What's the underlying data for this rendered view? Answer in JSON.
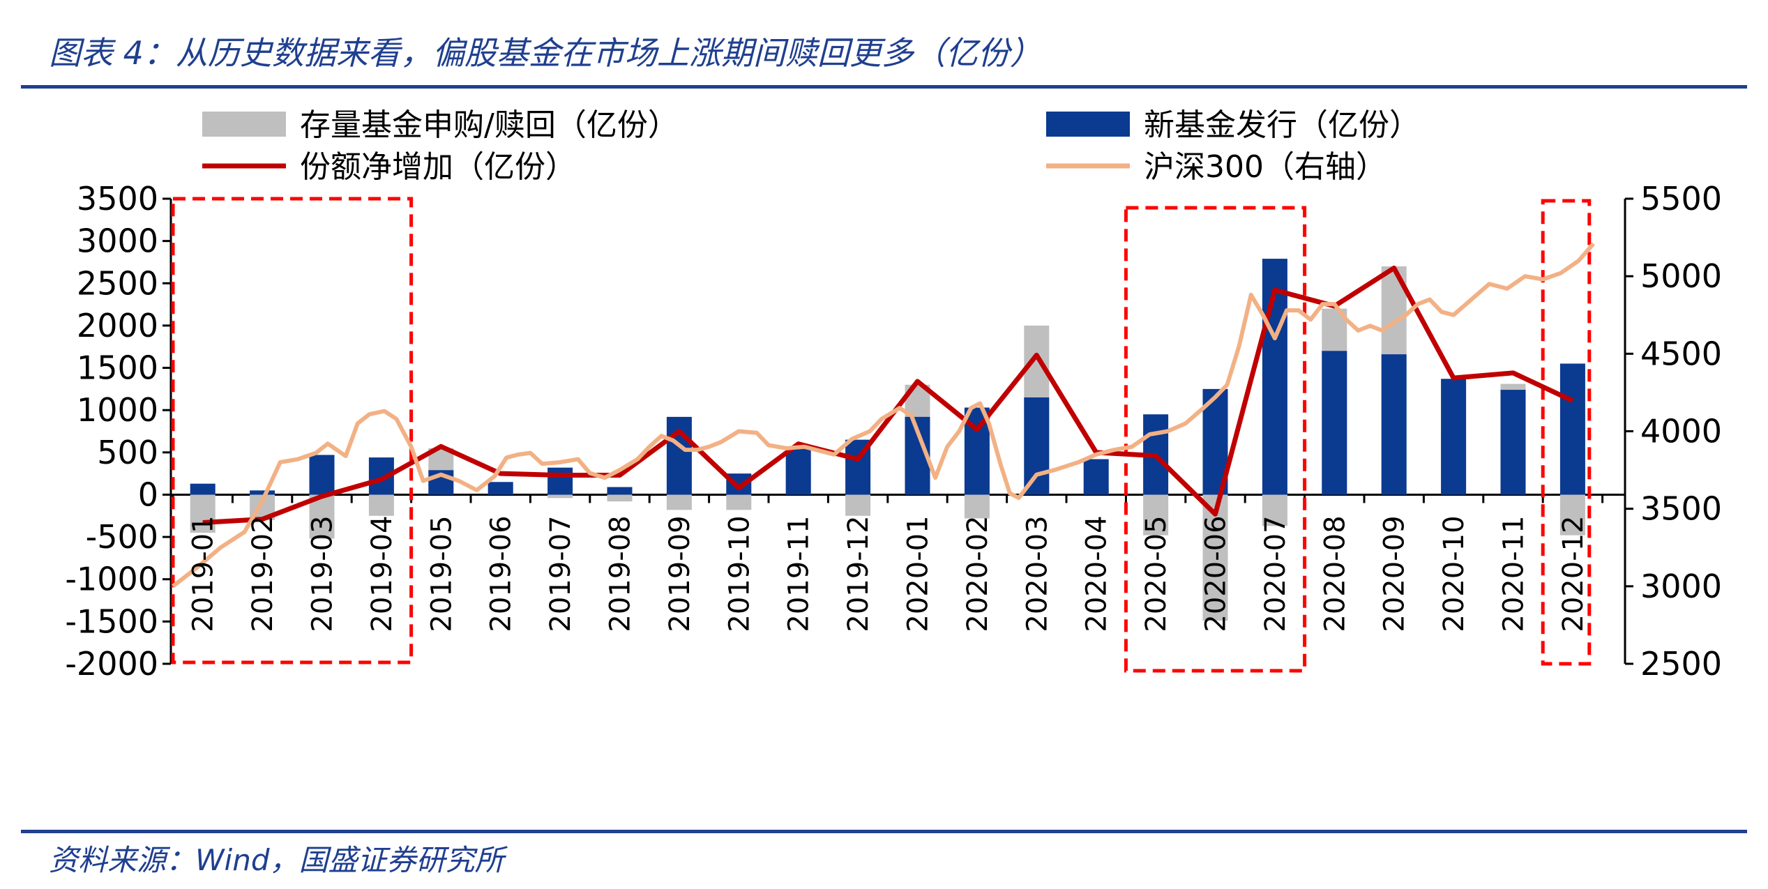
{
  "figure": {
    "title": "图表 4：从历史数据来看，偏股基金在市场上涨期间赎回更多（亿份）",
    "source": "资料来源：Wind，国盛证券研究所"
  },
  "chart_data": {
    "type": "bar",
    "categories": [
      "2019-01",
      "2019-02",
      "2019-03",
      "2019-04",
      "2019-05",
      "2019-06",
      "2019-07",
      "2019-08",
      "2019-09",
      "2019-10",
      "2019-11",
      "2019-12",
      "2020-01",
      "2020-02",
      "2020-03",
      "2020-04",
      "2020-05",
      "2020-06",
      "2020-07",
      "2020-08",
      "2020-09",
      "2020-10",
      "2020-11",
      "2020-12"
    ],
    "ylim": [
      -2000,
      3500
    ],
    "yticks": [
      3500,
      3000,
      2500,
      2000,
      1500,
      1000,
      500,
      0,
      -500,
      -1000,
      -1500,
      -2000
    ],
    "y2lim": [
      2500,
      5500
    ],
    "y2ticks": [
      5500,
      5000,
      4500,
      4000,
      3500,
      3000,
      2500
    ],
    "series": [
      {
        "name": "存量基金申购/赎回（亿份）",
        "kind": "bar",
        "color": "#bfbfbf",
        "values": [
          -450,
          -300,
          -520,
          -250,
          550,
          130,
          -40,
          -80,
          -180,
          -180,
          400,
          -250,
          1300,
          -280,
          2000,
          70,
          -480,
          -1490,
          -370,
          2200,
          2700,
          750,
          1310,
          -480
        ]
      },
      {
        "name": "新基金发行（亿份）",
        "kind": "bar",
        "color": "#0b3a91",
        "values": [
          130,
          50,
          470,
          440,
          290,
          150,
          320,
          90,
          920,
          250,
          570,
          650,
          920,
          1030,
          1150,
          420,
          950,
          1250,
          2790,
          1700,
          1660,
          1370,
          1240,
          1550
        ]
      },
      {
        "name": "份额净增加（亿份）",
        "kind": "line",
        "axis": "left",
        "color": "#c00000",
        "values": [
          -330,
          -290,
          -20,
          180,
          570,
          250,
          230,
          230,
          750,
          80,
          600,
          420,
          1340,
          770,
          1650,
          500,
          460,
          -230,
          2420,
          2230,
          2680,
          1380,
          1440,
          1110
        ]
      },
      {
        "name": "沪深300（右轴）",
        "kind": "line",
        "axis": "right",
        "color": "#f2b185",
        "points": [
          [
            0,
            3000
          ],
          [
            0.4,
            3120
          ],
          [
            0.8,
            3250
          ],
          [
            1.2,
            3350
          ],
          [
            1.5,
            3550
          ],
          [
            1.8,
            3800
          ],
          [
            2.1,
            3820
          ],
          [
            2.4,
            3860
          ],
          [
            2.6,
            3920
          ],
          [
            2.9,
            3840
          ],
          [
            3.1,
            4050
          ],
          [
            3.3,
            4110
          ],
          [
            3.55,
            4130
          ],
          [
            3.75,
            4080
          ],
          [
            4.0,
            3900
          ],
          [
            4.2,
            3680
          ],
          [
            4.5,
            3720
          ],
          [
            4.8,
            3680
          ],
          [
            5.1,
            3620
          ],
          [
            5.4,
            3710
          ],
          [
            5.6,
            3830
          ],
          [
            5.8,
            3850
          ],
          [
            6.0,
            3860
          ],
          [
            6.2,
            3790
          ],
          [
            6.5,
            3800
          ],
          [
            6.8,
            3820
          ],
          [
            7.0,
            3730
          ],
          [
            7.25,
            3700
          ],
          [
            7.5,
            3750
          ],
          [
            7.8,
            3820
          ],
          [
            8.0,
            3900
          ],
          [
            8.2,
            3970
          ],
          [
            8.4,
            3940
          ],
          [
            8.6,
            3880
          ],
          [
            8.8,
            3880
          ],
          [
            9.0,
            3900
          ],
          [
            9.2,
            3930
          ],
          [
            9.5,
            4000
          ],
          [
            9.8,
            3990
          ],
          [
            10.0,
            3910
          ],
          [
            10.3,
            3890
          ],
          [
            10.6,
            3900
          ],
          [
            10.9,
            3870
          ],
          [
            11.1,
            3850
          ],
          [
            11.4,
            3950
          ],
          [
            11.7,
            4000
          ],
          [
            11.9,
            4080
          ],
          [
            12.2,
            4150
          ],
          [
            12.4,
            4100
          ],
          [
            12.6,
            3900
          ],
          [
            12.8,
            3700
          ],
          [
            13.0,
            3900
          ],
          [
            13.2,
            4000
          ],
          [
            13.4,
            4150
          ],
          [
            13.55,
            4180
          ],
          [
            13.7,
            4050
          ],
          [
            13.9,
            3780
          ],
          [
            14.05,
            3600
          ],
          [
            14.2,
            3570
          ],
          [
            14.5,
            3720
          ],
          [
            14.8,
            3750
          ],
          [
            15.2,
            3800
          ],
          [
            15.5,
            3850
          ],
          [
            15.8,
            3880
          ],
          [
            16.1,
            3900
          ],
          [
            16.4,
            3980
          ],
          [
            16.7,
            4000
          ],
          [
            17.0,
            4050
          ],
          [
            17.3,
            4150
          ],
          [
            17.5,
            4220
          ],
          [
            17.7,
            4300
          ],
          [
            17.9,
            4550
          ],
          [
            18.1,
            4880
          ],
          [
            18.3,
            4750
          ],
          [
            18.5,
            4600
          ],
          [
            18.7,
            4780
          ],
          [
            18.9,
            4780
          ],
          [
            19.1,
            4720
          ],
          [
            19.3,
            4820
          ],
          [
            19.5,
            4820
          ],
          [
            19.7,
            4720
          ],
          [
            19.9,
            4650
          ],
          [
            20.1,
            4680
          ],
          [
            20.3,
            4650
          ],
          [
            20.5,
            4700
          ],
          [
            20.7,
            4750
          ],
          [
            20.9,
            4820
          ],
          [
            21.1,
            4850
          ],
          [
            21.3,
            4770
          ],
          [
            21.5,
            4750
          ],
          [
            21.8,
            4850
          ],
          [
            22.1,
            4950
          ],
          [
            22.4,
            4920
          ],
          [
            22.7,
            5000
          ],
          [
            23.0,
            4980
          ],
          [
            23.3,
            5020
          ],
          [
            23.6,
            5100
          ],
          [
            23.85,
            5210
          ]
        ]
      }
    ],
    "legend": {
      "placement": "top"
    }
  }
}
